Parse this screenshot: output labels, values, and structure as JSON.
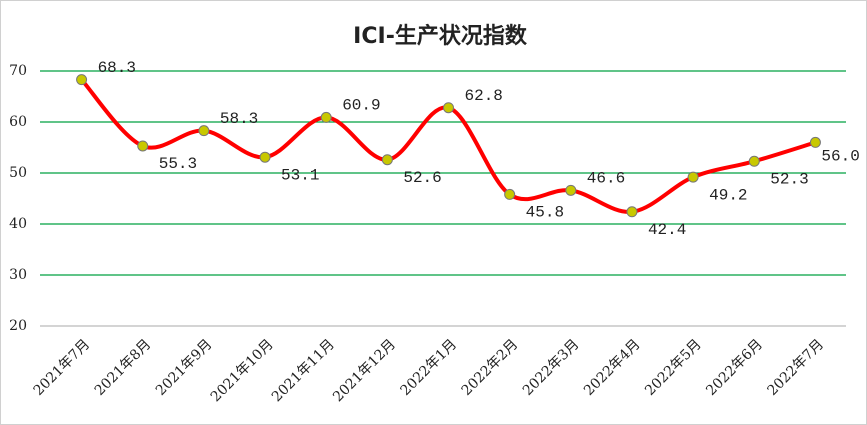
{
  "chart_data": {
    "type": "line",
    "title": "ICI-生产状况指数",
    "categories": [
      "2021年7月",
      "2021年8月",
      "2021年9月",
      "2021年10月",
      "2021年11月",
      "2021年12月",
      "2022年1月",
      "2022年2月",
      "2022年3月",
      "2022年4月",
      "2022年5月",
      "2022年6月",
      "2022年7月"
    ],
    "values": [
      68.3,
      55.3,
      58.3,
      53.1,
      60.9,
      52.6,
      62.8,
      45.8,
      46.6,
      42.4,
      49.2,
      52.3,
      56
    ],
    "value_labels": [
      "68.3",
      "55.3",
      "58.3",
      "53.1",
      "60.9",
      "52.6",
      "62.8",
      "45.8",
      "46.6",
      "42.4",
      "49.2",
      "52.3",
      "56.0"
    ],
    "color": "#ff0000",
    "marker_color": "#c8c800",
    "grid_color": "#00a040",
    "ylim": [
      20,
      70
    ],
    "yticks": [
      20,
      30,
      40,
      50,
      60,
      70
    ],
    "grid": true,
    "smooth": true
  }
}
